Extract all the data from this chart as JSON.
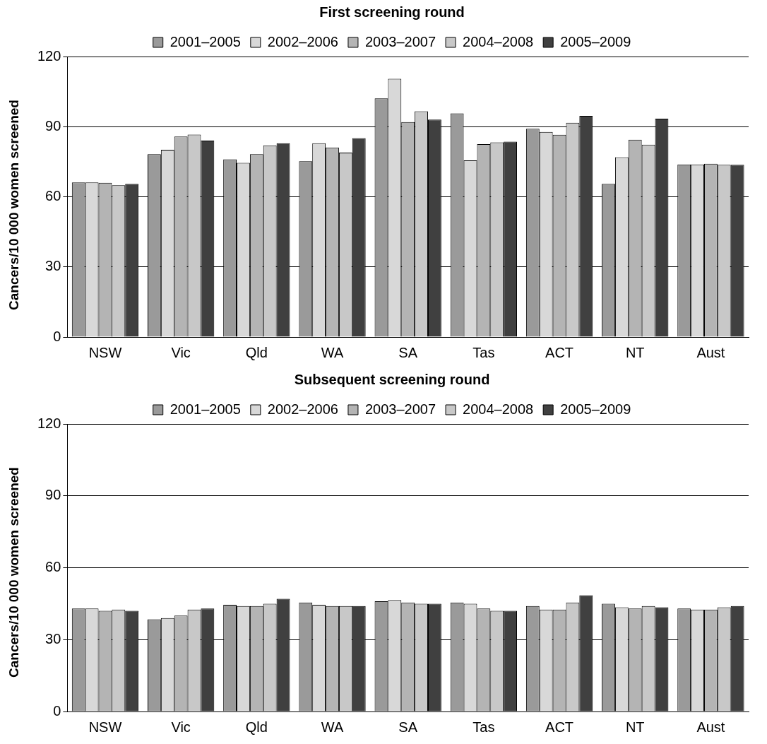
{
  "chart_data": [
    {
      "type": "bar",
      "title": "First screening round",
      "ylabel": "Cancers/10 000 women screened",
      "categories": [
        "NSW",
        "Vic",
        "Qld",
        "WA",
        "SA",
        "Tas",
        "ACT",
        "NT",
        "Aust"
      ],
      "ylim": [
        0,
        120
      ],
      "yticks": [
        0,
        30,
        60,
        90,
        120
      ],
      "grid": "y",
      "legend": "top",
      "series": [
        {
          "name": "2001–2005",
          "color": "#9a9a9a",
          "values": [
            66.1,
            78.2,
            76.0,
            75.2,
            102.1,
            95.7,
            89.1,
            65.5,
            73.8
          ]
        },
        {
          "name": "2002–2006",
          "color": "#d8d8d8",
          "values": [
            66.1,
            80.1,
            74.5,
            82.9,
            110.5,
            75.6,
            87.7,
            76.9,
            73.8
          ]
        },
        {
          "name": "2003–2007",
          "color": "#b4b4b4",
          "values": [
            66.0,
            85.8,
            78.2,
            81.1,
            92.0,
            82.5,
            86.5,
            84.4,
            74.1
          ]
        },
        {
          "name": "2004–2008",
          "color": "#c8c8c8",
          "values": [
            64.9,
            86.6,
            82.0,
            78.9,
            96.6,
            83.3,
            91.7,
            82.3,
            73.7
          ]
        },
        {
          "name": "2005–2009",
          "color": "#404040",
          "values": [
            65.5,
            84.0,
            82.9,
            85.1,
            93.0,
            83.6,
            94.6,
            93.4,
            73.7
          ]
        }
      ]
    },
    {
      "type": "bar",
      "title": "Subsequent screening round",
      "ylabel": "Cancers/10 000 women screened",
      "categories": [
        "NSW",
        "Vic",
        "Qld",
        "WA",
        "SA",
        "Tas",
        "ACT",
        "NT",
        "Aust"
      ],
      "ylim": [
        0,
        120
      ],
      "yticks": [
        0,
        30,
        60,
        90,
        120
      ],
      "grid": "y",
      "legend": "top",
      "series": [
        {
          "name": "2001–2005",
          "color": "#9a9a9a",
          "values": [
            43,
            38.5,
            44.5,
            45.5,
            46,
            45.5,
            44,
            45,
            43
          ]
        },
        {
          "name": "2002–2006",
          "color": "#d8d8d8",
          "values": [
            43,
            39,
            44,
            44.5,
            46.5,
            45,
            42.5,
            43.5,
            42.5
          ]
        },
        {
          "name": "2003–2007",
          "color": "#b4b4b4",
          "values": [
            42,
            40,
            44,
            44,
            45.5,
            43,
            42.5,
            43,
            42.5
          ]
        },
        {
          "name": "2004–2008",
          "color": "#c8c8c8",
          "values": [
            42.5,
            42.5,
            45,
            44,
            45,
            42,
            45.5,
            44,
            43.5
          ]
        },
        {
          "name": "2005–2009",
          "color": "#404040",
          "values": [
            42,
            43,
            47,
            44,
            45,
            42,
            48.5,
            43.5,
            44
          ]
        }
      ]
    }
  ]
}
